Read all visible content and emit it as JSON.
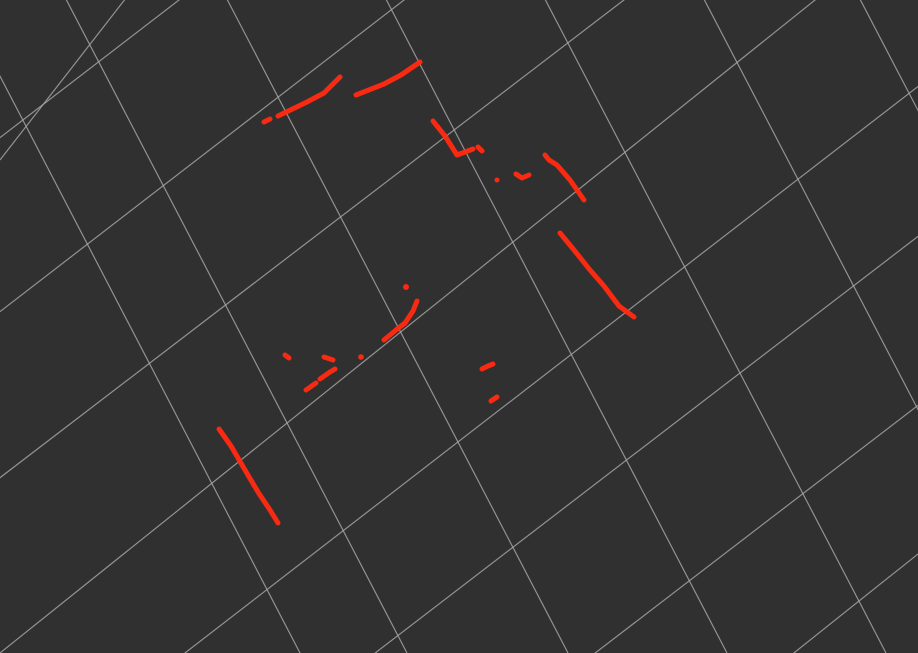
{
  "viewport": {
    "background_color": "#303030",
    "grid_color": "#a8a8a8",
    "scan_color": "#ff2a12",
    "display_type": "3d-laser-scan-visualization"
  },
  "layers": {
    "grid": {
      "name": "ground-grid"
    },
    "scan": {
      "name": "laser-scan-points"
    }
  }
}
